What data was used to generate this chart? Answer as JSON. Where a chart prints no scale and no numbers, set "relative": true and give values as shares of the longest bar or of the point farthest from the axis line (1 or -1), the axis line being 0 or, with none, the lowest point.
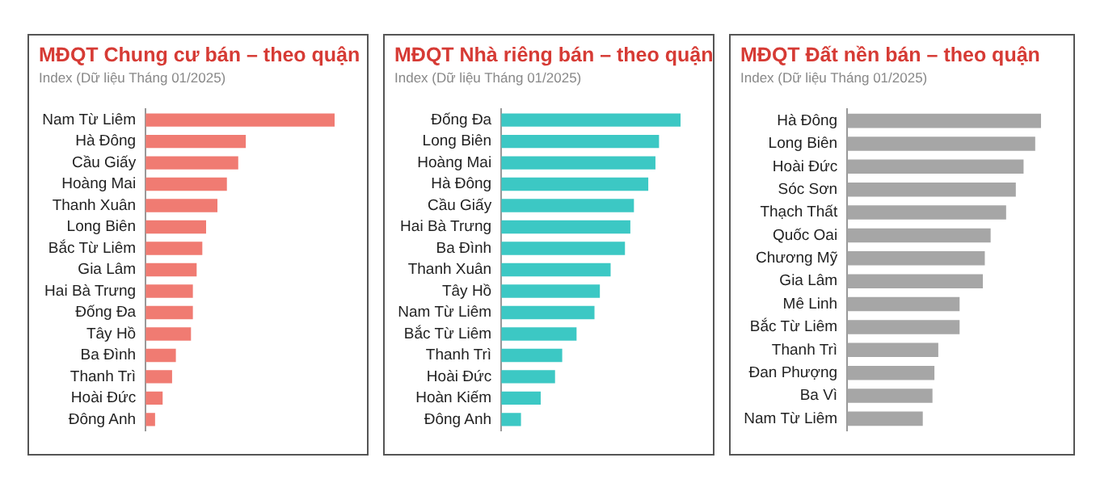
{
  "chart_data": [
    {
      "type": "bar",
      "orientation": "horizontal",
      "relative": true,
      "title": "MĐQT Chung cư bán – theo quận",
      "subtitle": "Index (Dữ liệu Tháng 01/2025)",
      "categories": [
        "Nam Từ Liêm",
        "Hà Đông",
        "Cầu Giấy",
        "Hoàng Mai",
        "Thanh Xuân",
        "Long Biên",
        "Bắc Từ Liêm",
        "Gia Lâm",
        "Hai Bà Trưng",
        "Đống Đa",
        "Tây Hồ",
        "Ba Đình",
        "Thanh Trì",
        "Hoài Đức",
        "Đông Anh"
      ],
      "values": [
        1,
        0.53,
        0.49,
        0.43,
        0.38,
        0.32,
        0.3,
        0.27,
        0.25,
        0.25,
        0.24,
        0.16,
        0.14,
        0.09,
        0.05
      ],
      "color": "#f07b72",
      "legend": false
    },
    {
      "type": "bar",
      "orientation": "horizontal",
      "relative": true,
      "title": "MĐQT Nhà riêng bán – theo quận",
      "subtitle": "Index (Dữ liệu Tháng 01/2025)",
      "categories": [
        "Đống Đa",
        "Long Biên",
        "Hoàng Mai",
        "Hà Đông",
        "Cầu Giấy",
        "Hai Bà Trưng",
        "Ba Đình",
        "Thanh Xuân",
        "Tây Hồ",
        "Nam Từ Liêm",
        "Bắc Từ Liêm",
        "Thanh Trì",
        "Hoài Đức",
        "Hoàn Kiếm",
        "Đông Anh"
      ],
      "values": [
        1,
        0.88,
        0.86,
        0.82,
        0.74,
        0.72,
        0.69,
        0.61,
        0.55,
        0.52,
        0.42,
        0.34,
        0.3,
        0.22,
        0.11
      ],
      "color": "#3cc8c4",
      "legend": false
    },
    {
      "type": "bar",
      "orientation": "horizontal",
      "relative": true,
      "title": "MĐQT Đất nền bán – theo quận",
      "subtitle": "Index (Dữ liệu Tháng 01/2025)",
      "categories": [
        "Hà Đông",
        "Long Biên",
        "Hoài Đức",
        "Sóc Sơn",
        "Thạch Thất",
        "Quốc Oai",
        "Chương Mỹ",
        "Gia Lâm",
        "Mê Linh",
        "Bắc Từ Liêm",
        "Thanh Trì",
        "Đan Phượng",
        "Ba Vì",
        "Nam Từ Liêm"
      ],
      "values": [
        1,
        0.97,
        0.91,
        0.87,
        0.82,
        0.74,
        0.71,
        0.7,
        0.58,
        0.58,
        0.47,
        0.45,
        0.44,
        0.39
      ],
      "color": "#a6a6a6",
      "legend": false
    }
  ]
}
